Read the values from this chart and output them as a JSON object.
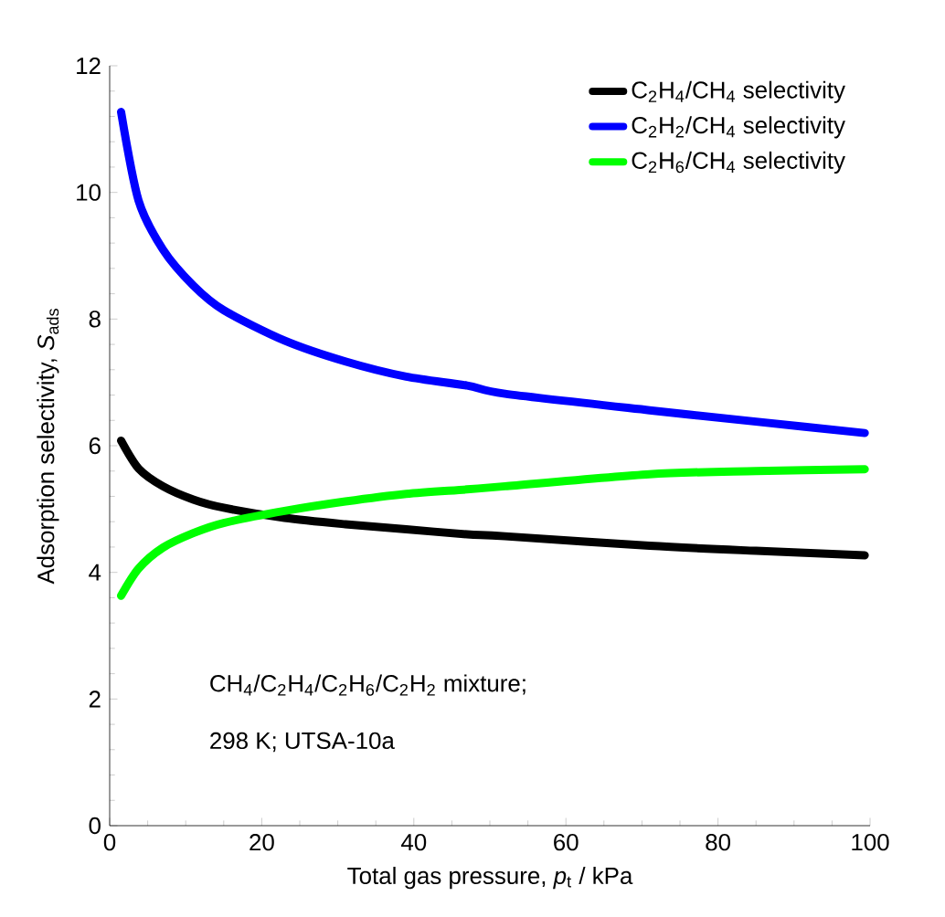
{
  "chart_data": {
    "type": "line",
    "xlabel": "Total gas pressure, *p*$_{t}$ / kPa",
    "ylabel": "Adsorption selectivity, *S*$_{ads}$",
    "xlim": [
      0,
      100
    ],
    "ylim": [
      0,
      12
    ],
    "xticks": [
      0,
      20,
      40,
      60,
      80,
      100
    ],
    "yticks": [
      0,
      2,
      4,
      6,
      8,
      10,
      12
    ],
    "x": [
      1.5,
      3.8,
      7,
      11,
      15,
      23,
      31,
      39,
      47,
      52,
      71,
      85,
      99.3
    ],
    "series": [
      {
        "name": "C$_{2}$H$_{4}$/CH$_{4}$ selectivity",
        "color": "#000000",
        "values": [
          6.08,
          5.64,
          5.36,
          5.15,
          5.02,
          4.86,
          4.76,
          4.68,
          4.6,
          4.57,
          4.42,
          4.34,
          4.27
        ]
      },
      {
        "name": "C$_{2}$H$_{2}$/CH$_{4}$ selectivity",
        "color": "#0000ff",
        "values": [
          11.27,
          9.87,
          9.1,
          8.53,
          8.14,
          7.66,
          7.33,
          7.09,
          6.95,
          6.82,
          6.56,
          6.38,
          6.2
        ]
      },
      {
        "name": "C$_{2}$H$_{6}$/CH$_{4}$ selectivity",
        "color": "#00ff00",
        "values": [
          3.63,
          4.06,
          4.39,
          4.62,
          4.78,
          4.97,
          5.12,
          5.24,
          5.31,
          5.36,
          5.55,
          5.6,
          5.63
        ]
      }
    ],
    "legend": "top right",
    "grid": false,
    "marker": "none",
    "line_style": "solid",
    "annotations": [
      "CH$_{4}$/C$_{2}$H$_{4}$/C$_{2}$H$_{6}$/C$_{2}$H$_{2}$ mixture;",
      "298 K; UTSA-10a"
    ]
  }
}
